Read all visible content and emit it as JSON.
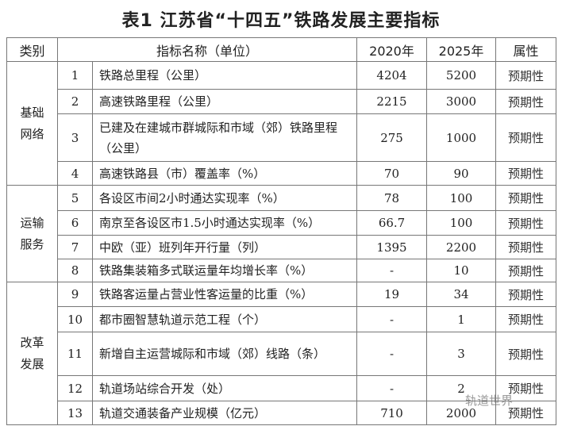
{
  "title": "表1  江苏省“十四五”铁路发展主要指标",
  "headers": [
    "类别",
    "指标名称（单位）",
    "2020年",
    "2025年",
    "属性"
  ],
  "groups": [
    {
      "category": "基础网络",
      "rows": [
        {
          "no": "1",
          "name": "铁路总里程（公里）",
          "y2020": "4204",
          "y2025": "5200",
          "attr": "预期性"
        },
        {
          "no": "2",
          "name": "高速铁路里程（公里）",
          "y2020": "2215",
          "y2025": "3000",
          "attr": "预期性"
        },
        {
          "no": "3",
          "name": "已建及在建城市群城际和市域（郊）铁路里程（公里）",
          "y2020": "275",
          "y2025": "1000",
          "attr": "预期性"
        },
        {
          "no": "4",
          "name": "高速铁路县（市）覆盖率（%）",
          "y2020": "70",
          "y2025": "90",
          "attr": "预期性"
        }
      ]
    },
    {
      "category": "运输服务",
      "rows": [
        {
          "no": "5",
          "name": "各设区市间2小时通达实现率（%）",
          "y2020": "78",
          "y2025": "100",
          "attr": "预期性"
        },
        {
          "no": "6",
          "name": "南京至各设区市1.5小时通达实现率（%）",
          "y2020": "66.7",
          "y2025": "100",
          "attr": "预期性"
        },
        {
          "no": "7",
          "name": "中欧（亚）班列年开行量（列）",
          "y2020": "1395",
          "y2025": "2200",
          "attr": "预期性"
        },
        {
          "no": "8",
          "name": "铁路集装箱多式联运量年均增长率（%）",
          "y2020": "-",
          "y2025": "10",
          "attr": "预期性"
        }
      ]
    },
    {
      "category": "改革发展",
      "rows": [
        {
          "no": "9",
          "name": "铁路客运量占营业性客运量的比重（%）",
          "y2020": "19",
          "y2025": "34",
          "attr": "预期性"
        },
        {
          "no": "10",
          "name": "都市圈智慧轨道示范工程（个）",
          "y2020": "-",
          "y2025": "1",
          "attr": "预期性"
        },
        {
          "no": "11",
          "name": "新增自主运营城际和市域（郊）线路（条）",
          "y2020": "-",
          "y2025": "3",
          "attr": "预期性"
        },
        {
          "no": "12",
          "name": "轨道场站综合开发（处）",
          "y2020": "-",
          "y2025": "2",
          "attr": "预期性"
        },
        {
          "no": "13",
          "name": "轨道交通装备产业规模（亿元）",
          "y2020": "710",
          "y2025": "2000",
          "attr": "预期性"
        }
      ]
    }
  ],
  "watermark": "轨道世界"
}
